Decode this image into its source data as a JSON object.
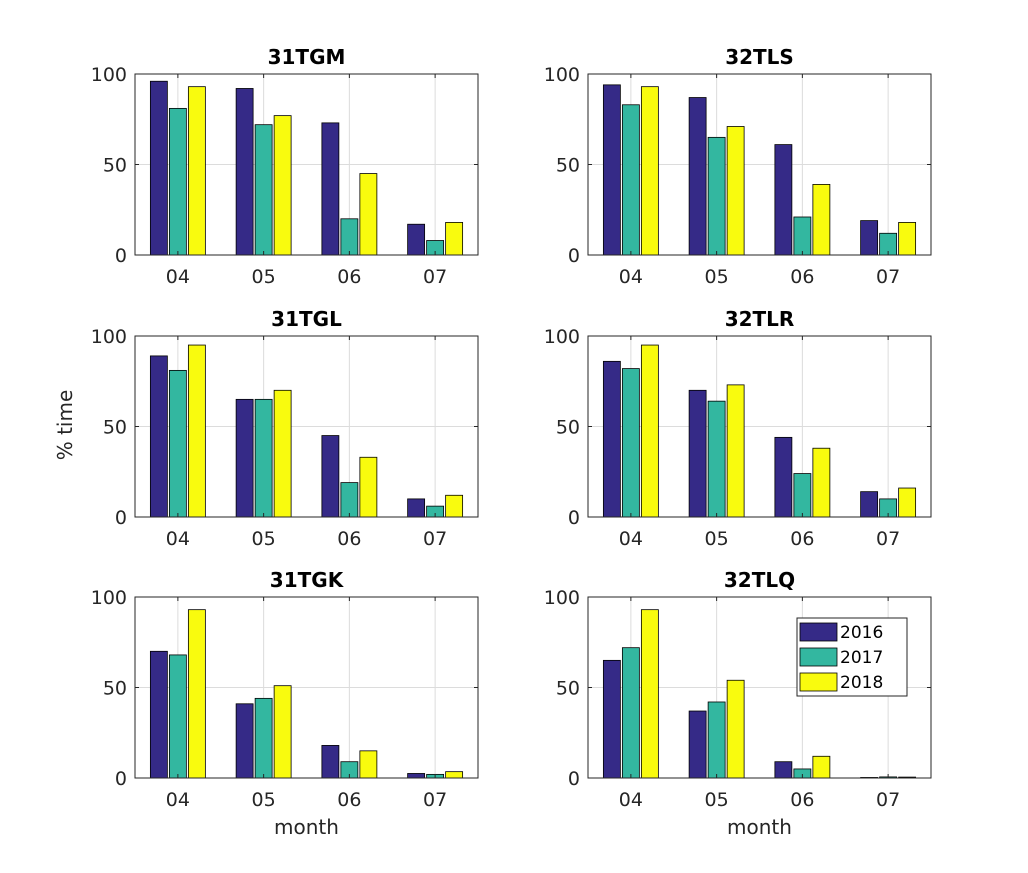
{
  "chart_data": {
    "type": "bar",
    "categories": [
      "04",
      "05",
      "06",
      "07"
    ],
    "xlabel": "month",
    "ylabel": "% time",
    "ylim": [
      0,
      100
    ],
    "yticks": [
      0,
      50,
      100
    ],
    "grid": true,
    "legend": {
      "placement": "top-right",
      "panel": "32TLQ"
    },
    "colors": {
      "2016": "#352a87",
      "2017": "#33b7a0",
      "2018": "#f9fb0e"
    },
    "series_names": [
      "2016",
      "2017",
      "2018"
    ],
    "panels": [
      {
        "title": "31TGM",
        "series": [
          {
            "name": "2016",
            "values": [
              96,
              92,
              73,
              17
            ]
          },
          {
            "name": "2017",
            "values": [
              81,
              72,
              20,
              8
            ]
          },
          {
            "name": "2018",
            "values": [
              93,
              77,
              45,
              18
            ]
          }
        ]
      },
      {
        "title": "32TLS",
        "series": [
          {
            "name": "2016",
            "values": [
              94,
              87,
              61,
              19
            ]
          },
          {
            "name": "2017",
            "values": [
              83,
              65,
              21,
              12
            ]
          },
          {
            "name": "2018",
            "values": [
              93,
              71,
              39,
              18
            ]
          }
        ]
      },
      {
        "title": "31TGL",
        "series": [
          {
            "name": "2016",
            "values": [
              89,
              65,
              45,
              10
            ]
          },
          {
            "name": "2017",
            "values": [
              81,
              65,
              19,
              6
            ]
          },
          {
            "name": "2018",
            "values": [
              95,
              70,
              33,
              12
            ]
          }
        ]
      },
      {
        "title": "32TLR",
        "series": [
          {
            "name": "2016",
            "values": [
              86,
              70,
              44,
              14
            ]
          },
          {
            "name": "2017",
            "values": [
              82,
              64,
              24,
              10
            ]
          },
          {
            "name": "2018",
            "values": [
              95,
              73,
              38,
              16
            ]
          }
        ]
      },
      {
        "title": "31TGK",
        "series": [
          {
            "name": "2016",
            "values": [
              70,
              41,
              18,
              2.5
            ]
          },
          {
            "name": "2017",
            "values": [
              68,
              44,
              9,
              2
            ]
          },
          {
            "name": "2018",
            "values": [
              93,
              51,
              15,
              3.5
            ]
          }
        ]
      },
      {
        "title": "32TLQ",
        "series": [
          {
            "name": "2016",
            "values": [
              65,
              37,
              9,
              0.3
            ]
          },
          {
            "name": "2017",
            "values": [
              72,
              42,
              5,
              0.6
            ]
          },
          {
            "name": "2018",
            "values": [
              93,
              54,
              12,
              0.5
            ]
          }
        ]
      }
    ]
  }
}
